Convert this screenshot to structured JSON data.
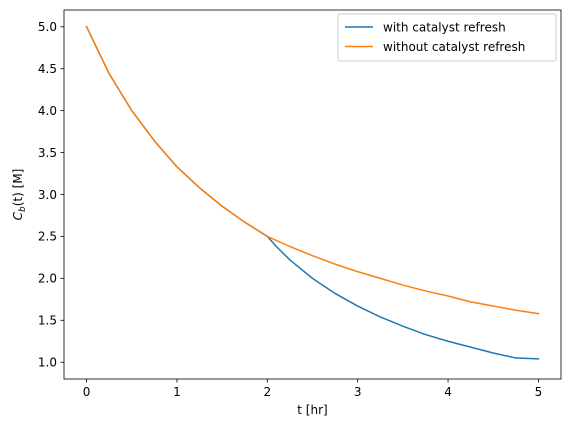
{
  "chart_data": {
    "type": "line",
    "xlabel": "t [hr]",
    "ylabel_main": "C",
    "ylabel_sub": "b",
    "ylabel_rest": "(t) [M]",
    "xlim": [
      -0.25,
      5.25
    ],
    "ylim": [
      0.8,
      5.2
    ],
    "xticks": [
      0,
      1,
      2,
      3,
      4,
      5
    ],
    "xtick_labels": [
      "0",
      "1",
      "2",
      "3",
      "4",
      "5"
    ],
    "yticks": [
      1.0,
      1.5,
      2.0,
      2.5,
      3.0,
      3.5,
      4.0,
      4.5,
      5.0
    ],
    "ytick_labels": [
      "1.0",
      "1.5",
      "2.0",
      "2.5",
      "3.0",
      "3.5",
      "4.0",
      "4.5",
      "5.0"
    ],
    "grid": false,
    "legend_position": "top-right",
    "series": [
      {
        "name": "with catalyst refresh",
        "color": "#1f77b4",
        "x": [
          0,
          0.25,
          0.5,
          0.75,
          1.0,
          1.25,
          1.5,
          1.75,
          2.0,
          2.1,
          2.25,
          2.5,
          2.75,
          3.0,
          3.25,
          3.5,
          3.75,
          4.0,
          4.25,
          4.5,
          4.75,
          5.0
        ],
        "y": [
          5.0,
          4.44,
          4.0,
          3.64,
          3.33,
          3.08,
          2.86,
          2.67,
          2.5,
          2.38,
          2.22,
          2.0,
          1.82,
          1.67,
          1.54,
          1.43,
          1.33,
          1.25,
          1.18,
          1.11,
          1.05,
          1.04
        ]
      },
      {
        "name": "without catalyst refresh",
        "color": "#ff7f0e",
        "x": [
          0,
          0.25,
          0.5,
          0.75,
          1.0,
          1.25,
          1.5,
          1.75,
          2.0,
          2.25,
          2.5,
          2.75,
          3.0,
          3.25,
          3.5,
          3.75,
          4.0,
          4.25,
          4.5,
          4.75,
          5.0
        ],
        "y": [
          5.0,
          4.44,
          4.0,
          3.64,
          3.33,
          3.08,
          2.86,
          2.67,
          2.5,
          2.38,
          2.27,
          2.17,
          2.08,
          2.0,
          1.92,
          1.85,
          1.79,
          1.72,
          1.67,
          1.62,
          1.58
        ]
      }
    ]
  }
}
